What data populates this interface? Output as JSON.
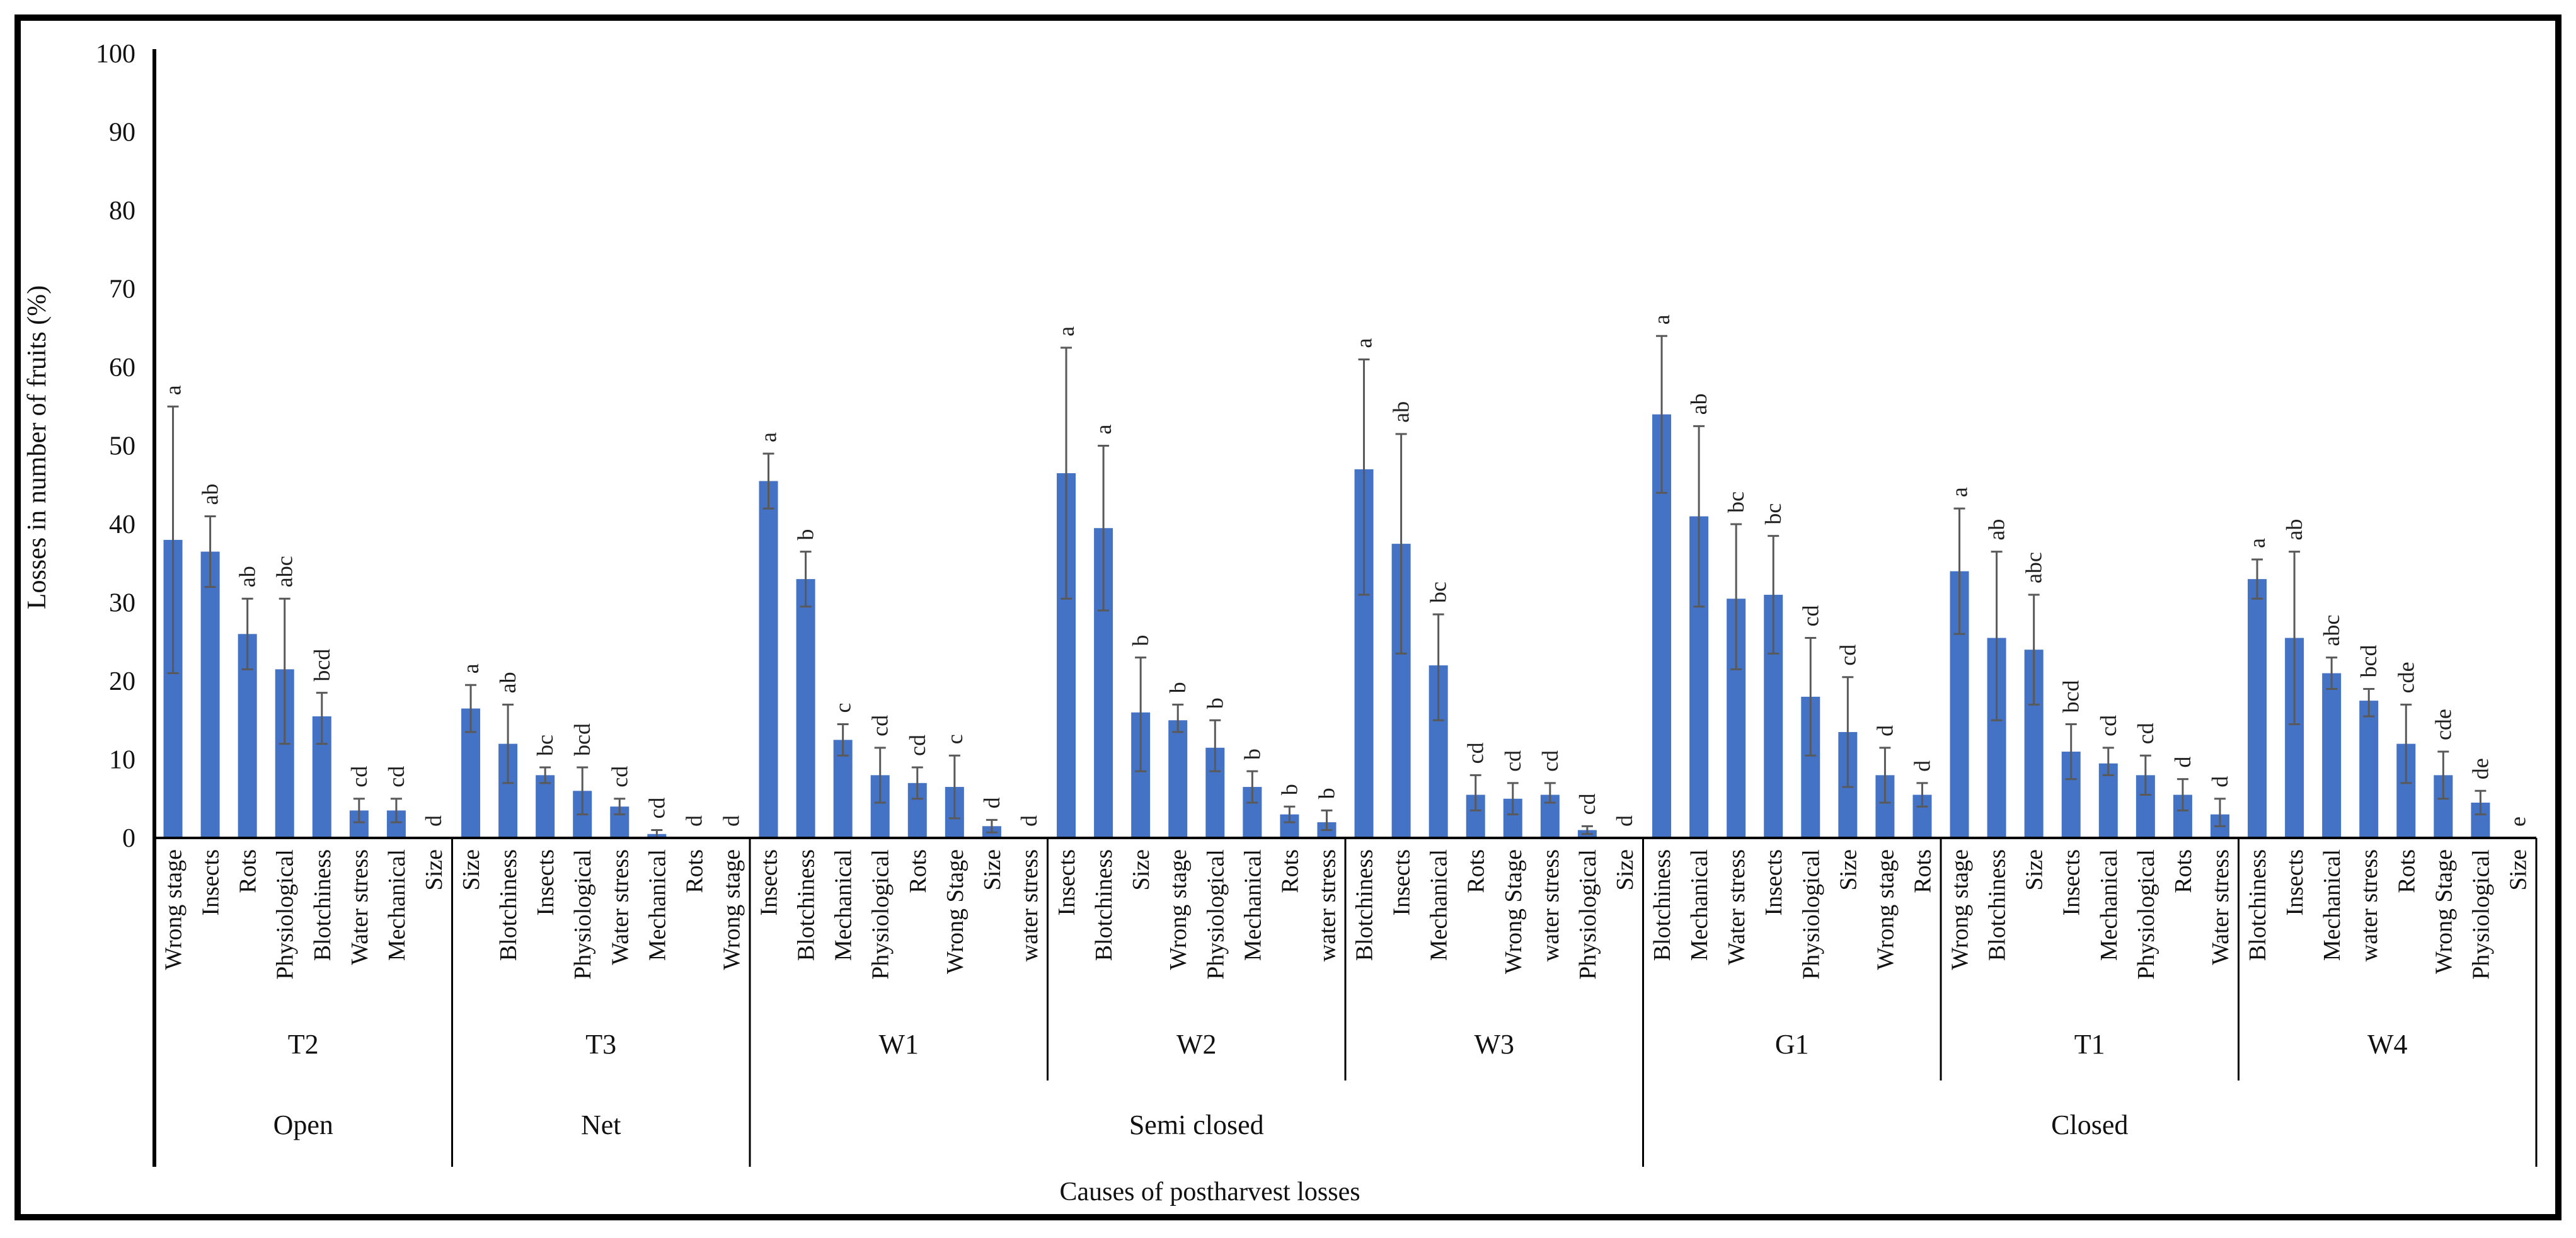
{
  "figure": {
    "background": "#ffffff",
    "border_color": "#000000"
  },
  "chart_data": {
    "type": "bar",
    "title": "",
    "xlabel": "Causes of postharvest losses",
    "ylabel": "Losses in number of fruits  (%)",
    "ylim": [
      0,
      100
    ],
    "yticks": [
      0,
      10,
      20,
      30,
      40,
      50,
      60,
      70,
      80,
      90,
      100
    ],
    "grid": false,
    "legend": "none",
    "bar_color": "#4472C4",
    "error_bar_color": "#595959",
    "letter_color": "#1f1f1f",
    "axis_color": "#000000",
    "groups": [
      {
        "id": "T2",
        "system": "Open",
        "bars": [
          {
            "cause": "Wrong stage",
            "value": 38,
            "err_minus": 17,
            "err_plus": 17,
            "letter": "a"
          },
          {
            "cause": "Insects",
            "value": 36.5,
            "err_minus": 4.5,
            "err_plus": 4.5,
            "letter": "ab"
          },
          {
            "cause": "Rots",
            "value": 26,
            "err_minus": 4.5,
            "err_plus": 4.5,
            "letter": "ab"
          },
          {
            "cause": "Physiological",
            "value": 21.5,
            "err_minus": 9.5,
            "err_plus": 9,
            "letter": "abc"
          },
          {
            "cause": "Blotchiness",
            "value": 15.5,
            "err_minus": 3.5,
            "err_plus": 3,
            "letter": "bcd"
          },
          {
            "cause": "Water stress",
            "value": 3.5,
            "err_minus": 1.5,
            "err_plus": 1.5,
            "letter": "cd"
          },
          {
            "cause": "Mechanical",
            "value": 3.5,
            "err_minus": 1.5,
            "err_plus": 1.5,
            "letter": "cd"
          },
          {
            "cause": "Size",
            "value": 0,
            "err_minus": 0,
            "err_plus": 0,
            "letter": "d"
          }
        ]
      },
      {
        "id": "T3",
        "system": "Net",
        "bars": [
          {
            "cause": "Size",
            "value": 16.5,
            "err_minus": 3,
            "err_plus": 3,
            "letter": "a"
          },
          {
            "cause": "Blotchiness",
            "value": 12,
            "err_minus": 5,
            "err_plus": 5,
            "letter": "ab"
          },
          {
            "cause": "Insects",
            "value": 8,
            "err_minus": 1,
            "err_plus": 1,
            "letter": "bc"
          },
          {
            "cause": "Physiological",
            "value": 6,
            "err_minus": 3,
            "err_plus": 3,
            "letter": "bcd"
          },
          {
            "cause": "Water stress",
            "value": 4,
            "err_minus": 1,
            "err_plus": 1,
            "letter": "cd"
          },
          {
            "cause": "Mechanical",
            "value": 0.5,
            "err_minus": 0.5,
            "err_plus": 0.5,
            "letter": "cd"
          },
          {
            "cause": "Rots",
            "value": 0,
            "err_minus": 0,
            "err_plus": 0,
            "letter": "d"
          },
          {
            "cause": "Wrong stage",
            "value": 0,
            "err_minus": 0,
            "err_plus": 0,
            "letter": "d"
          }
        ]
      },
      {
        "id": "W1",
        "system": "Semi closed",
        "bars": [
          {
            "cause": "Insects",
            "value": 45.5,
            "err_minus": 3.5,
            "err_plus": 3.5,
            "letter": "a"
          },
          {
            "cause": "Blotchiness",
            "value": 33,
            "err_minus": 3.5,
            "err_plus": 3.5,
            "letter": "b"
          },
          {
            "cause": "Mechanical",
            "value": 12.5,
            "err_minus": 2,
            "err_plus": 2,
            "letter": "c"
          },
          {
            "cause": "Physiological",
            "value": 8,
            "err_minus": 3.5,
            "err_plus": 3.5,
            "letter": "cd"
          },
          {
            "cause": "Rots",
            "value": 7,
            "err_minus": 2,
            "err_plus": 2,
            "letter": "cd"
          },
          {
            "cause": "Wrong Stage",
            "value": 6.5,
            "err_minus": 4,
            "err_plus": 4,
            "letter": "c"
          },
          {
            "cause": "Size",
            "value": 1.5,
            "err_minus": 0.8,
            "err_plus": 0.8,
            "letter": "d"
          },
          {
            "cause": "water stress",
            "value": 0,
            "err_minus": 0,
            "err_plus": 0,
            "letter": "d"
          }
        ]
      },
      {
        "id": "W2",
        "system": "Semi closed",
        "bars": [
          {
            "cause": "Insects",
            "value": 46.5,
            "err_minus": 16,
            "err_plus": 16,
            "letter": "a"
          },
          {
            "cause": "Blotchiness",
            "value": 39.5,
            "err_minus": 10.5,
            "err_plus": 10.5,
            "letter": "a"
          },
          {
            "cause": "Size",
            "value": 16,
            "err_minus": 7.5,
            "err_plus": 7,
            "letter": "b"
          },
          {
            "cause": "Wrong stage",
            "value": 15,
            "err_minus": 1.5,
            "err_plus": 2,
            "letter": "b"
          },
          {
            "cause": "Physiological",
            "value": 11.5,
            "err_minus": 3,
            "err_plus": 3.5,
            "letter": "b"
          },
          {
            "cause": "Mechanical",
            "value": 6.5,
            "err_minus": 2,
            "err_plus": 2,
            "letter": "b"
          },
          {
            "cause": "Rots",
            "value": 3,
            "err_minus": 1,
            "err_plus": 1,
            "letter": "b"
          },
          {
            "cause": "water stress",
            "value": 2,
            "err_minus": 1,
            "err_plus": 1.5,
            "letter": "b"
          }
        ]
      },
      {
        "id": "W3",
        "system": "Semi closed",
        "bars": [
          {
            "cause": "Blotchiness",
            "value": 47,
            "err_minus": 16,
            "err_plus": 14,
            "letter": "a"
          },
          {
            "cause": "Insects",
            "value": 37.5,
            "err_minus": 14,
            "err_plus": 14,
            "letter": "ab"
          },
          {
            "cause": "Mechanical",
            "value": 22,
            "err_minus": 7,
            "err_plus": 6.5,
            "letter": "bc"
          },
          {
            "cause": "Rots",
            "value": 5.5,
            "err_minus": 2,
            "err_plus": 2.5,
            "letter": "cd"
          },
          {
            "cause": "Wrong Stage",
            "value": 5,
            "err_minus": 2,
            "err_plus": 2,
            "letter": "cd"
          },
          {
            "cause": "water stress",
            "value": 5.5,
            "err_minus": 1,
            "err_plus": 1.5,
            "letter": "cd"
          },
          {
            "cause": "Physiological",
            "value": 1,
            "err_minus": 0.5,
            "err_plus": 0.5,
            "letter": "cd"
          },
          {
            "cause": "Size",
            "value": 0,
            "err_minus": 0,
            "err_plus": 0,
            "letter": "d"
          }
        ]
      },
      {
        "id": "G1",
        "system": "Closed",
        "bars": [
          {
            "cause": "Blotchiness",
            "value": 54,
            "err_minus": 10,
            "err_plus": 10,
            "letter": "a"
          },
          {
            "cause": "Mechanical",
            "value": 41,
            "err_minus": 11.5,
            "err_plus": 11.5,
            "letter": "ab"
          },
          {
            "cause": "Water stress",
            "value": 30.5,
            "err_minus": 9,
            "err_plus": 9.5,
            "letter": "bc"
          },
          {
            "cause": "Insects",
            "value": 31,
            "err_minus": 7.5,
            "err_plus": 7.5,
            "letter": "bc"
          },
          {
            "cause": "Physiological",
            "value": 18,
            "err_minus": 7.5,
            "err_plus": 7.5,
            "letter": "cd"
          },
          {
            "cause": "Size",
            "value": 13.5,
            "err_minus": 7,
            "err_plus": 7,
            "letter": "cd"
          },
          {
            "cause": "Wrong stage",
            "value": 8,
            "err_minus": 3.5,
            "err_plus": 3.5,
            "letter": "d"
          },
          {
            "cause": "Rots",
            "value": 5.5,
            "err_minus": 1.5,
            "err_plus": 1.5,
            "letter": "d"
          }
        ]
      },
      {
        "id": "T1",
        "system": "Closed",
        "bars": [
          {
            "cause": "Wrong stage",
            "value": 34,
            "err_minus": 8,
            "err_plus": 8,
            "letter": "a"
          },
          {
            "cause": "Blotchiness",
            "value": 25.5,
            "err_minus": 10.5,
            "err_plus": 11,
            "letter": "ab"
          },
          {
            "cause": "Size",
            "value": 24,
            "err_minus": 7,
            "err_plus": 7,
            "letter": "abc"
          },
          {
            "cause": "Insects",
            "value": 11,
            "err_minus": 3.5,
            "err_plus": 3.5,
            "letter": "bcd"
          },
          {
            "cause": "Mechanical",
            "value": 9.5,
            "err_minus": 1.5,
            "err_plus": 2,
            "letter": "cd"
          },
          {
            "cause": "Physiological",
            "value": 8,
            "err_minus": 2.5,
            "err_plus": 2.5,
            "letter": "cd"
          },
          {
            "cause": "Rots",
            "value": 5.5,
            "err_minus": 2,
            "err_plus": 2,
            "letter": "d"
          },
          {
            "cause": "Water stress",
            "value": 3,
            "err_minus": 1.5,
            "err_plus": 2,
            "letter": "d"
          }
        ]
      },
      {
        "id": "W4",
        "system": "Closed",
        "bars": [
          {
            "cause": "Blotchiness",
            "value": 33,
            "err_minus": 2.5,
            "err_plus": 2.5,
            "letter": "a"
          },
          {
            "cause": "Insects",
            "value": 25.5,
            "err_minus": 11,
            "err_plus": 11,
            "letter": "ab"
          },
          {
            "cause": "Mechanical",
            "value": 21,
            "err_minus": 2,
            "err_plus": 2,
            "letter": "abc"
          },
          {
            "cause": "water stress",
            "value": 17.5,
            "err_minus": 2,
            "err_plus": 1.5,
            "letter": "bcd"
          },
          {
            "cause": "Rots",
            "value": 12,
            "err_minus": 5,
            "err_plus": 5,
            "letter": "cde"
          },
          {
            "cause": "Wrong Stage",
            "value": 8,
            "err_minus": 3,
            "err_plus": 3,
            "letter": "cde"
          },
          {
            "cause": "Physiological",
            "value": 4.5,
            "err_minus": 1.5,
            "err_plus": 1.5,
            "letter": "de"
          },
          {
            "cause": "Size",
            "value": 0,
            "err_minus": 0,
            "err_plus": 0,
            "letter": "e"
          }
        ]
      }
    ]
  }
}
